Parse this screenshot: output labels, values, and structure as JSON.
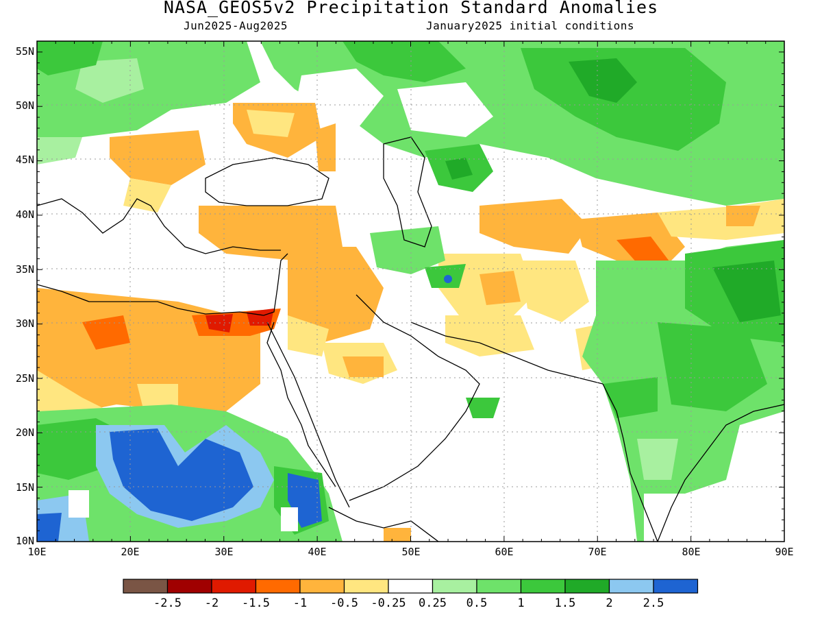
{
  "title": "NASA_GEOS5v2 Precipitation Standard Anomalies",
  "subtitle_left": "Jun2025-Aug2025",
  "subtitle_right": "January2025 initial conditions",
  "lat_labels": [
    "55N",
    "50N",
    "45N",
    "40N",
    "35N",
    "30N",
    "25N",
    "20N",
    "15N",
    "10N"
  ],
  "lon_labels": [
    "10E",
    "20E",
    "30E",
    "40E",
    "50E",
    "60E",
    "70E",
    "80E",
    "90E"
  ],
  "colorbar": {
    "colors": [
      "#7a5545",
      "#a00000",
      "#e01a00",
      "#ff6a00",
      "#ffb43c",
      "#ffe680",
      "#ffffff",
      "#a8f0a0",
      "#6ee26a",
      "#3cc83c",
      "#20aa28",
      "#8cc8f0",
      "#1e64d2"
    ],
    "labels": [
      "-2.5",
      "-2",
      "-1.5",
      "-1",
      "-0.5",
      "-0.25",
      "0.25",
      "0.5",
      "1",
      "1.5",
      "2",
      "2.5"
    ]
  }
}
